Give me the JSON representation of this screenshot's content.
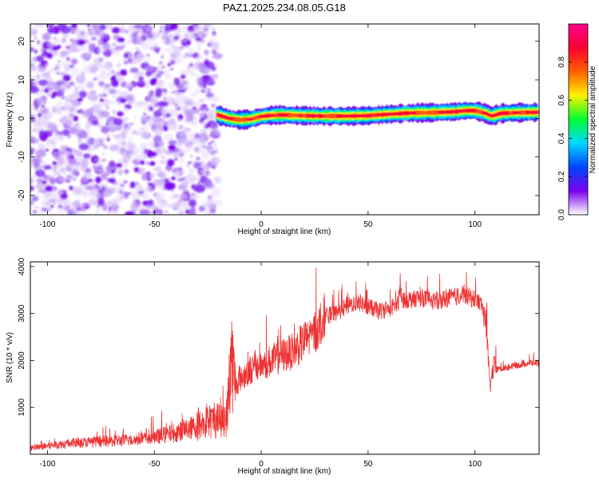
{
  "figure_title": "PAZ1.2025.234.08.05.G18",
  "chart_data": [
    {
      "type": "heatmap",
      "xlabel": "Height of straight line (km)",
      "ylabel": "Frequency (Hz)",
      "xlim": [
        -108,
        130
      ],
      "ylim": [
        -25,
        24.5
      ],
      "xticks": [
        -100,
        -50,
        0,
        50,
        100
      ],
      "yticks": [
        -20,
        -10,
        0,
        10,
        20
      ],
      "xtick_labels": [
        "-100",
        "-50",
        "0",
        "50",
        "100"
      ],
      "ytick_labels": [
        "-20",
        "-10",
        "0",
        "10",
        "20"
      ],
      "noise_region_x": [
        -108,
        -21
      ],
      "signal_center_frequency": [
        [
          -21,
          1.0
        ],
        [
          -15,
          0.0
        ],
        [
          -10,
          -0.4
        ],
        [
          -5,
          -0.2
        ],
        [
          0,
          0.5
        ],
        [
          5,
          0.8
        ],
        [
          10,
          0.9
        ],
        [
          20,
          0.7
        ],
        [
          30,
          0.6
        ],
        [
          40,
          0.6
        ],
        [
          50,
          0.7
        ],
        [
          60,
          1.1
        ],
        [
          70,
          1.4
        ],
        [
          80,
          1.5
        ],
        [
          90,
          1.7
        ],
        [
          96,
          2.0
        ],
        [
          100,
          2.0
        ],
        [
          104,
          1.5
        ],
        [
          108,
          0.6
        ],
        [
          112,
          1.3
        ],
        [
          120,
          1.5
        ],
        [
          130,
          1.6
        ]
      ],
      "colorbar": {
        "label": "Normalized spectral amplitude",
        "range": [
          0.0,
          1.0
        ],
        "ticks": [
          0.0,
          0.2,
          0.4,
          0.6,
          0.8
        ],
        "tick_labels": [
          "0.0",
          "0.2",
          "0.4",
          "0.6",
          "0.8"
        ],
        "colormap": [
          "#ffffff",
          "#7a00f0",
          "#0046ff",
          "#00d8ff",
          "#00ff30",
          "#fff000",
          "#ff6000",
          "#ff0030",
          "#ff0090"
        ]
      }
    },
    {
      "type": "line",
      "xlabel": "Height of straight line (km)",
      "ylabel": "SNR (10 * v/v)",
      "xlim": [
        -108,
        130
      ],
      "ylim": [
        0,
        4100
      ],
      "xticks": [
        -100,
        -50,
        0,
        50,
        100
      ],
      "yticks": [
        1000,
        2000,
        3000,
        4000
      ],
      "xtick_labels": [
        "-100",
        "-50",
        "0",
        "50",
        "100"
      ],
      "ytick_labels": [
        "1000",
        "2000",
        "3000",
        "4000"
      ],
      "color": "#ee3333",
      "series": [
        {
          "name": "SNR",
          "x": [
            -108,
            -100,
            -90,
            -80,
            -70,
            -60,
            -50,
            -40,
            -30,
            -25,
            -20,
            -16,
            -15,
            -14,
            -13,
            -12,
            -10,
            -5,
            0,
            5,
            10,
            15,
            20,
            25,
            30,
            35,
            40,
            45,
            50,
            55,
            60,
            64,
            65,
            66,
            70,
            75,
            80,
            85,
            90,
            95,
            100,
            103,
            105,
            106,
            107,
            108,
            109,
            110,
            115,
            120,
            125,
            130
          ],
          "y": [
            130,
            180,
            230,
            260,
            280,
            310,
            360,
            460,
            600,
            680,
            740,
            800,
            1500,
            2200,
            1700,
            1500,
            1600,
            1800,
            1900,
            2000,
            2100,
            2200,
            2400,
            2600,
            2950,
            3000,
            3150,
            3250,
            3150,
            3050,
            3100,
            3200,
            3500,
            3300,
            3300,
            3350,
            3250,
            3300,
            3350,
            3400,
            3300,
            3200,
            3000,
            2200,
            1400,
            1700,
            1900,
            1800,
            1850,
            1900,
            1950,
            1950
          ]
        }
      ]
    }
  ]
}
